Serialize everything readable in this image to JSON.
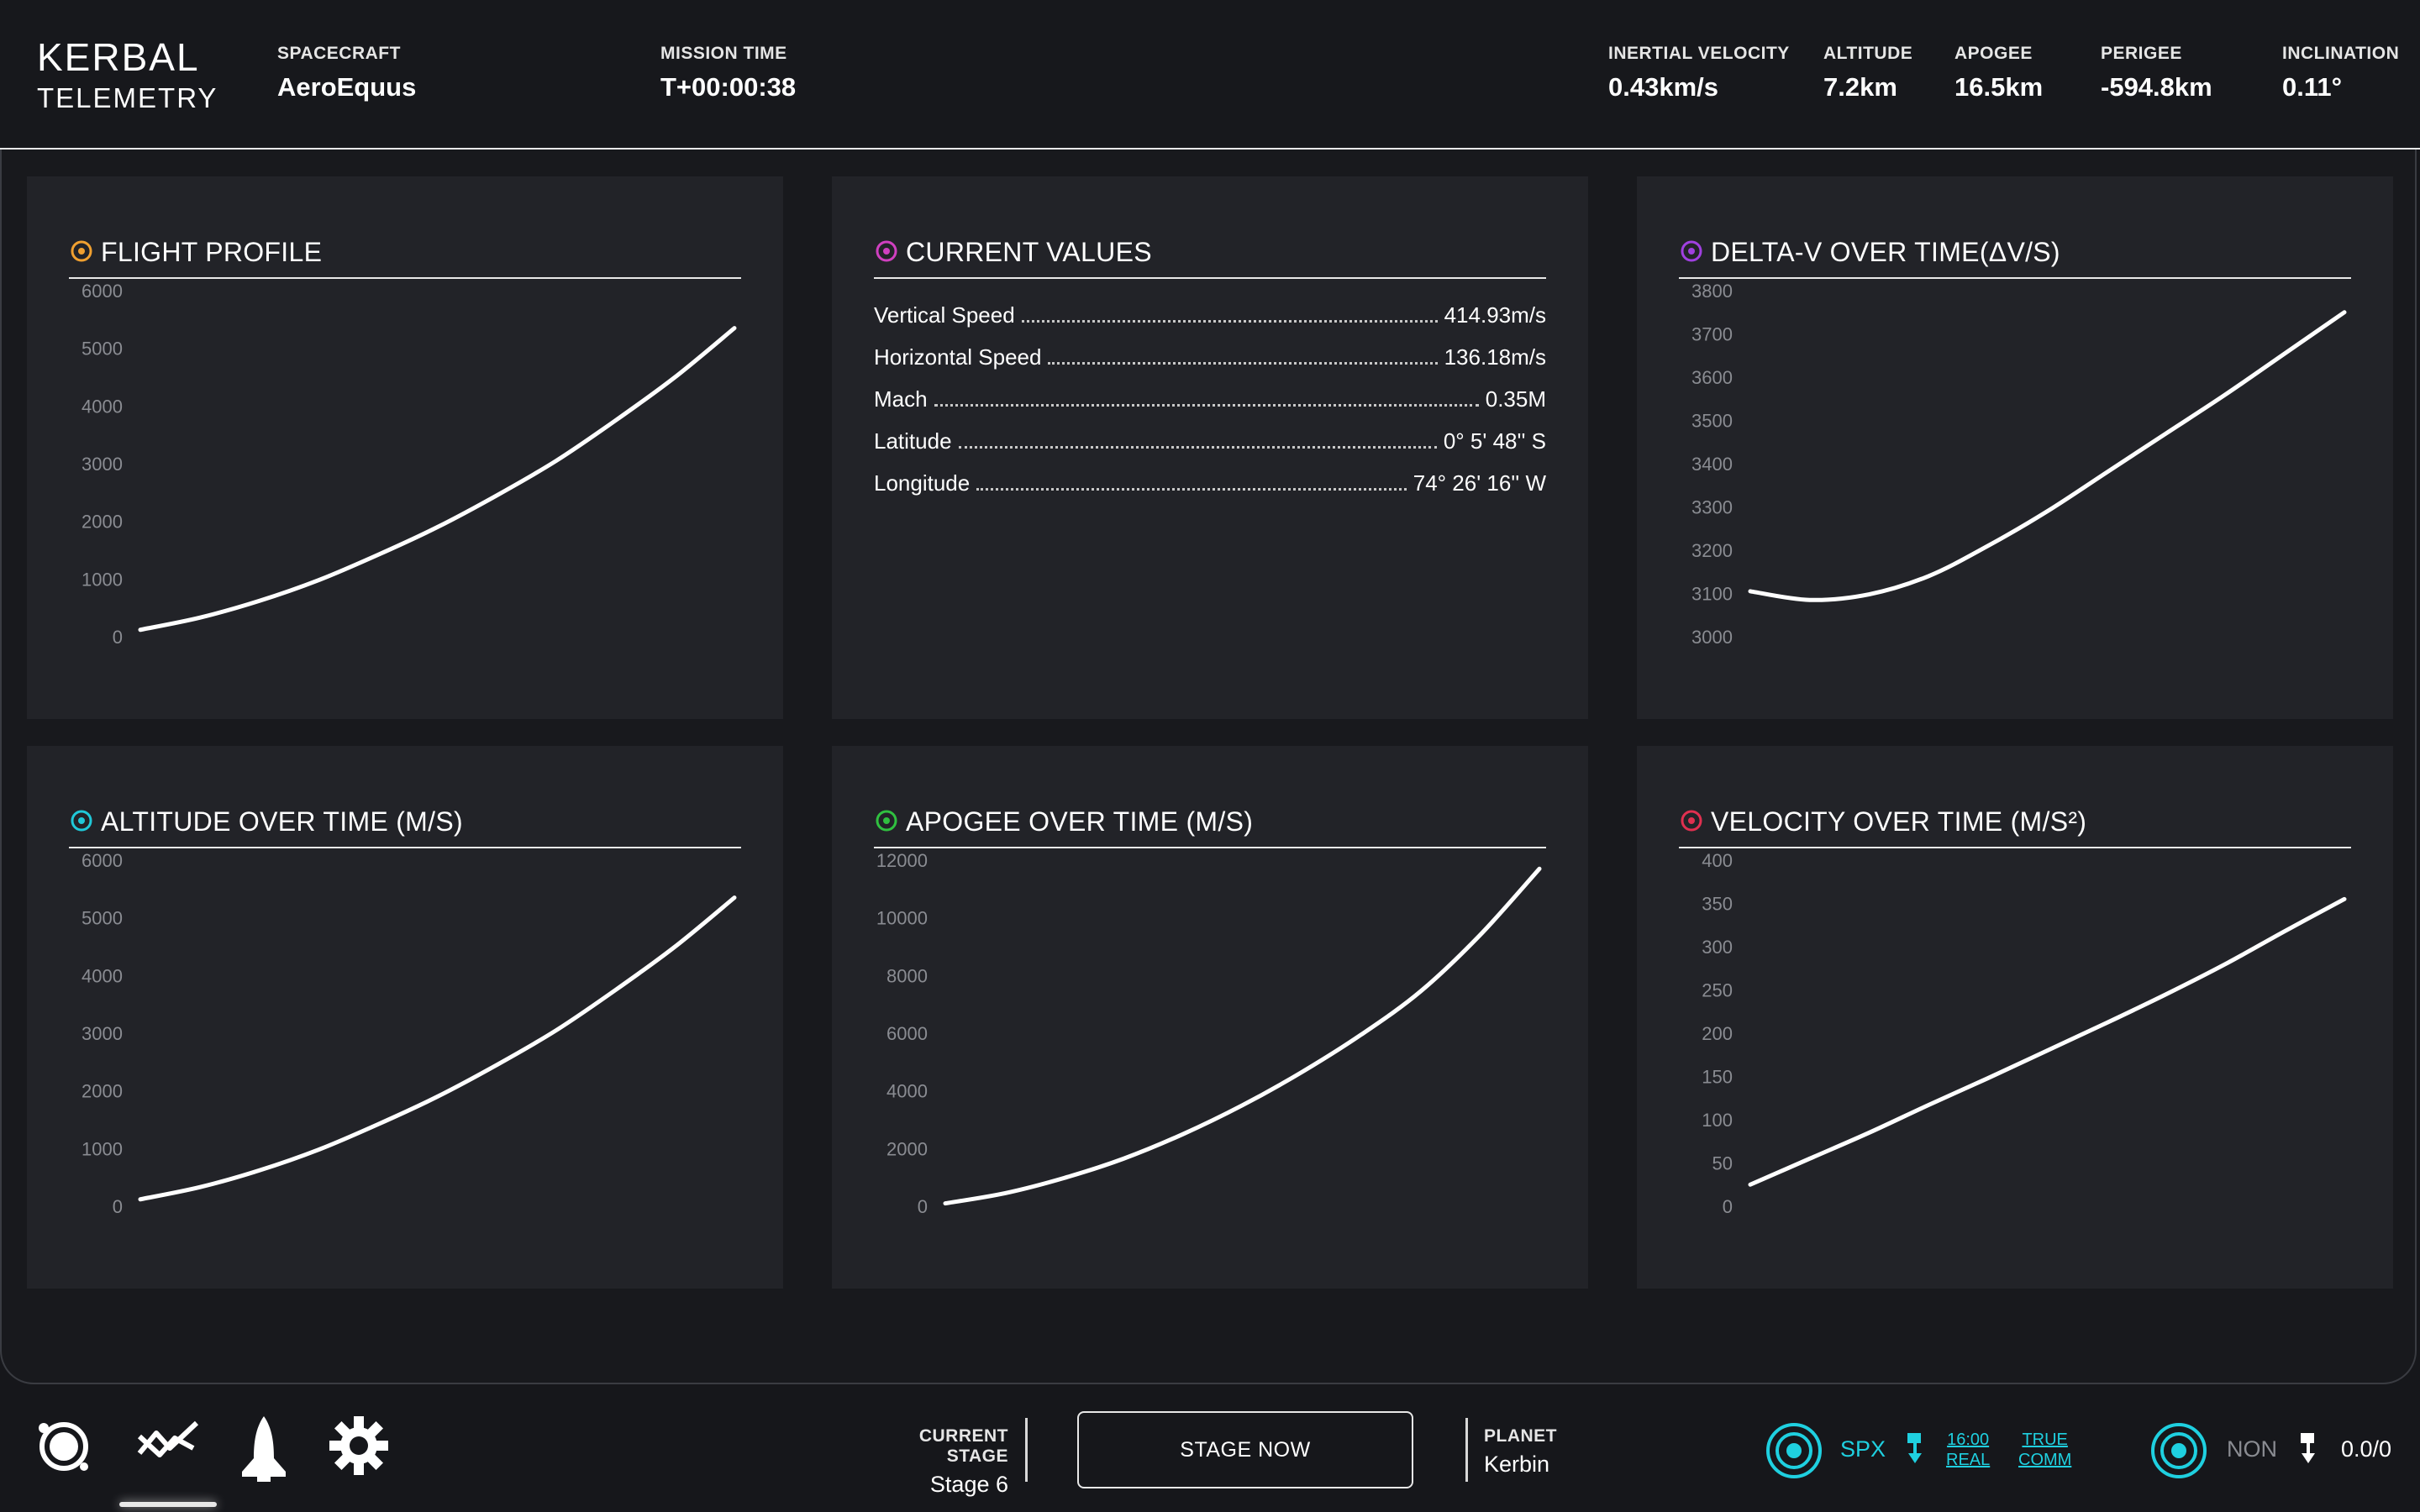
{
  "app": {
    "logo_line1": "KERBAL",
    "logo_line2": "TELEMETRY"
  },
  "header": {
    "spacecraft_label": "SPACECRAFT",
    "spacecraft": "AeroEquus",
    "mission_time_label": "MISSION TIME",
    "mission_time": "T+00:00:38",
    "stats": [
      {
        "label": "INERTIAL VELOCITY",
        "value": "0.43km/s"
      },
      {
        "label": "ALTITUDE",
        "value": "7.2km"
      },
      {
        "label": "APOGEE",
        "value": "16.5km"
      },
      {
        "label": "PERIGEE",
        "value": "-594.8km"
      },
      {
        "label": "INCLINATION",
        "value": "0.11°"
      }
    ]
  },
  "panels": {
    "flight_profile": {
      "title": "FLIGHT PROFILE",
      "color": "#f0a030"
    },
    "current_values": {
      "title": "CURRENT VALUES",
      "color": "#d040c0",
      "rows": [
        {
          "label": "Vertical Speed",
          "value": "414.93m/s"
        },
        {
          "label": "Horizontal Speed",
          "value": "136.18m/s"
        },
        {
          "label": "Mach",
          "value": "0.35M"
        },
        {
          "label": "Latitude",
          "value": "0° 5' 48'' S"
        },
        {
          "label": "Longitude",
          "value": "74° 26' 16'' W"
        }
      ]
    },
    "delta_v": {
      "title": "DELTA-V OVER TIME(ΔV/S)",
      "color": "#a040e0"
    },
    "altitude": {
      "title": "ALTITUDE OVER TIME (M/S)",
      "color": "#20c8d8"
    },
    "apogee": {
      "title": "APOGEE OVER TIME (M/S)",
      "color": "#30c040"
    },
    "velocity": {
      "title": "VELOCITY OVER TIME (M/S²)",
      "color": "#e03050"
    }
  },
  "chart_data": [
    {
      "id": "flight_profile",
      "type": "line",
      "ylim": [
        0,
        6000
      ],
      "yticks": [
        "0",
        "1000",
        "2000",
        "3000",
        "4000",
        "5000",
        "6000"
      ],
      "x": [
        0,
        0.1,
        0.2,
        0.3,
        0.4,
        0.5,
        0.6,
        0.7,
        0.8,
        0.9,
        1.0
      ],
      "values": [
        120,
        330,
        620,
        980,
        1420,
        1900,
        2450,
        3050,
        3750,
        4500,
        5350
      ]
    },
    {
      "id": "delta_v",
      "type": "line",
      "ylim": [
        3000,
        3800
      ],
      "yticks": [
        "3000",
        "3100",
        "3200",
        "3300",
        "3400",
        "3500",
        "3600",
        "3700",
        "3800"
      ],
      "x": [
        0,
        0.1,
        0.2,
        0.3,
        0.4,
        0.5,
        0.6,
        0.7,
        0.8,
        0.9,
        1.0
      ],
      "values": [
        3105,
        3085,
        3098,
        3140,
        3210,
        3290,
        3380,
        3470,
        3560,
        3655,
        3750
      ]
    },
    {
      "id": "altitude",
      "type": "line",
      "ylim": [
        0,
        6000
      ],
      "yticks": [
        "0",
        "1000",
        "2000",
        "3000",
        "4000",
        "5000",
        "6000"
      ],
      "x": [
        0,
        0.1,
        0.2,
        0.3,
        0.4,
        0.5,
        0.6,
        0.7,
        0.8,
        0.9,
        1.0
      ],
      "values": [
        120,
        330,
        620,
        980,
        1420,
        1900,
        2450,
        3050,
        3750,
        4500,
        5350
      ]
    },
    {
      "id": "apogee",
      "type": "line",
      "ylim": [
        0,
        12000
      ],
      "yticks": [
        "0",
        "2000",
        "4000",
        "6000",
        "8000",
        "10000",
        "12000"
      ],
      "x": [
        0,
        0.1,
        0.2,
        0.3,
        0.4,
        0.5,
        0.6,
        0.7,
        0.8,
        0.9,
        1.0
      ],
      "values": [
        100,
        450,
        980,
        1650,
        2500,
        3500,
        4650,
        5950,
        7450,
        9400,
        11700
      ]
    },
    {
      "id": "velocity",
      "type": "line",
      "ylim": [
        0,
        400
      ],
      "yticks": [
        "0",
        "50",
        "100",
        "150",
        "200",
        "250",
        "300",
        "350",
        "400"
      ],
      "x": [
        0,
        0.1,
        0.2,
        0.3,
        0.4,
        0.5,
        0.6,
        0.7,
        0.8,
        0.9,
        1.0
      ],
      "values": [
        25,
        55,
        85,
        117,
        148,
        180,
        212,
        245,
        280,
        318,
        355
      ]
    }
  ],
  "footer": {
    "current_stage_label": "CURRENT STAGE",
    "current_stage": "Stage 6",
    "stage_button": "STAGE NOW",
    "planet_label": "PLANET",
    "planet": "Kerbin",
    "comm1_name": "SPX",
    "comm1_time": "16:00",
    "comm1_real": "REAL",
    "comm1_true": "TRUE",
    "comm1_comm": "COMM",
    "comm2_name": "NON",
    "comm2_value": "0.0/0"
  },
  "colors": {
    "accent_cyan": "#1fd0e0",
    "background": "#16171b",
    "panel": "#222328"
  },
  "icons": [
    "orbit-icon",
    "chart-trend-icon",
    "shuttle-icon",
    "gear-icon",
    "signal-icon",
    "antenna-icon"
  ]
}
